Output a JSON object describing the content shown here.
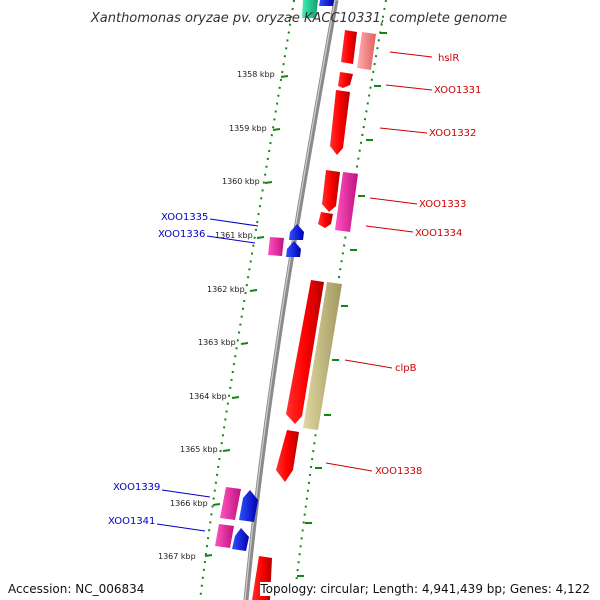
{
  "title": "Xanthomonas oryzae pv. oryzae KACC10331, complete genome",
  "footer": {
    "accession": "Accession: NC_006834",
    "topology": "Topology: circular; Length: 4,941,439 bp; Genes: 4,122"
  },
  "colors": {
    "backbone": "#8a8a8a",
    "ticks": "#118811",
    "right_label": "#cc0000",
    "left_label": "#0000cc"
  },
  "ticks": [
    "1358 kbp",
    "1359 kbp",
    "1360 kbp",
    "1361 kbp",
    "1362 kbp",
    "1363 kbp",
    "1364 kbp",
    "1365 kbp",
    "1366 kbp",
    "1367 kbp"
  ],
  "labels_right": [
    "hslR",
    "XOO1331",
    "XOO1332",
    "XOO1333",
    "XOO1334",
    "clpB",
    "XOO1338"
  ],
  "labels_left": [
    "XOO1335",
    "XOO1336",
    "XOO1339",
    "XOO1341"
  ]
}
